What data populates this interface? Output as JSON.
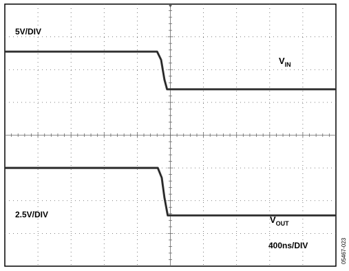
{
  "chart_data": {
    "type": "line",
    "title": "",
    "xlabel": "",
    "ylabel": "",
    "grid": true,
    "x_divisions": 10,
    "y_divisions": 8,
    "x_range_div": [
      0,
      10
    ],
    "y_range_div": [
      0,
      8
    ],
    "time_scale": "400ns/DIV",
    "figure_id": "05467-023",
    "series": [
      {
        "name": "VIN",
        "label_main": "V",
        "label_sub": "IN",
        "scale": "5V/DIV",
        "color": "#444444",
        "points_div": [
          [
            0,
            6.55
          ],
          [
            4.6,
            6.55
          ],
          [
            4.72,
            6.3
          ],
          [
            4.82,
            5.7
          ],
          [
            4.9,
            5.4
          ],
          [
            10,
            5.4
          ]
        ]
      },
      {
        "name": "VOUT",
        "label_main": "V",
        "label_sub": "OUT",
        "scale": "2.5V/DIV",
        "color": "#444444",
        "points_div": [
          [
            0,
            3.0
          ],
          [
            4.62,
            3.0
          ],
          [
            4.74,
            2.7
          ],
          [
            4.82,
            2.1
          ],
          [
            4.92,
            1.55
          ],
          [
            10,
            1.55
          ]
        ]
      }
    ]
  }
}
